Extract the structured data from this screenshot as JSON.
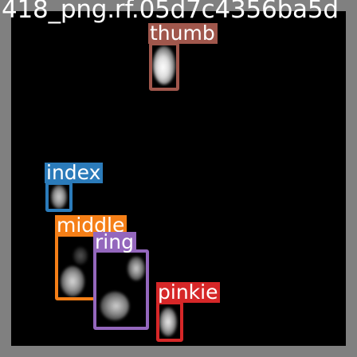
{
  "image_title": "418_png.rf.05d7c4356ba5d",
  "detections": [
    {
      "label": "thumb",
      "color": "#a0574c"
    },
    {
      "label": "index",
      "color": "#2b7bba"
    },
    {
      "label": "middle",
      "color": "#f57f17"
    },
    {
      "label": "ring",
      "color": "#9467bd"
    },
    {
      "label": "pinkie",
      "color": "#d62728"
    }
  ]
}
